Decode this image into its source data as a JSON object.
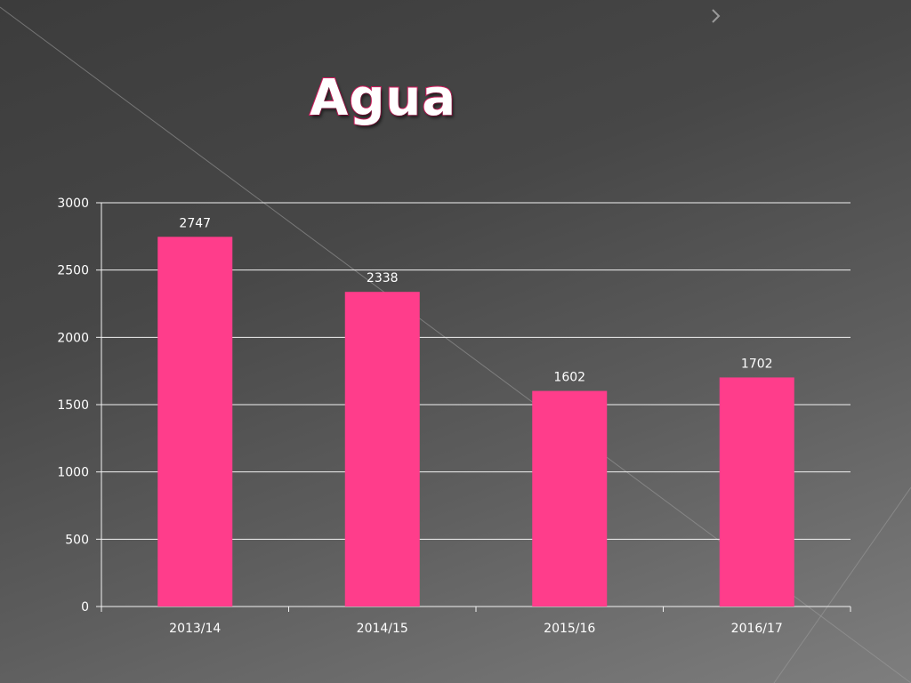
{
  "slide": {
    "title": "Agua"
  },
  "colors": {
    "bar": "#ff3d8b",
    "grid": "#f2f2f2",
    "text": "#ffffff",
    "title_outline": "#d81b60"
  },
  "chart_data": {
    "type": "bar",
    "title": "Agua",
    "categories": [
      "2013/14",
      "2014/15",
      "2015/16",
      "2016/17"
    ],
    "values": [
      2747,
      2338,
      1602,
      1702
    ],
    "data_labels": [
      "2747",
      "2338",
      "1602",
      "1702"
    ],
    "y_ticks": [
      "0",
      "500",
      "1000",
      "1500",
      "2000",
      "2500",
      "3000"
    ],
    "ylim": [
      0,
      3000
    ],
    "xlabel": "",
    "ylabel": "",
    "grid": true,
    "legend": "none"
  }
}
